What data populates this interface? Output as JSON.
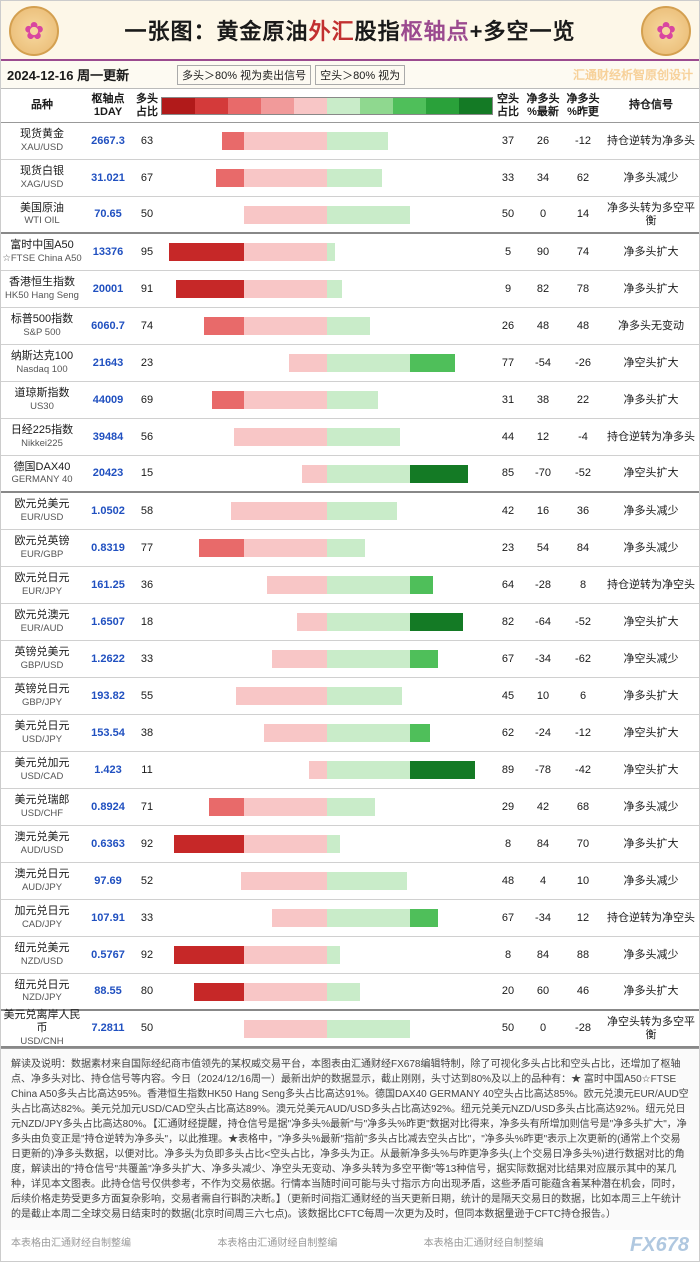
{
  "title": {
    "prefix": "一张图：",
    "p1": "黄金原油",
    "p2": "外汇",
    "p3": "股指",
    "p4": "枢轴点",
    "p5": "+多空一览"
  },
  "date": "2024-12-16  周一更新",
  "legend": {
    "long": "多头＞80%  视为卖出信号",
    "short": "空头＞80%  视为"
  },
  "watermark": "汇通财经析智原创设计",
  "columns": {
    "name": "品种",
    "pivot": "枢轴点\n1DAY",
    "long": "多头\n占比",
    "short": "空头\n占比",
    "netnew": "净多头\n%最新",
    "netprev": "净多头\n%昨更",
    "signal": "持仓信号"
  },
  "scale_colors": [
    "#b11a1a",
    "#d43a3a",
    "#e86a6a",
    "#f19a9a",
    "#f8c6c6",
    "#c9ecc9",
    "#8fd88f",
    "#4fbf5a",
    "#2aa13a",
    "#147a25"
  ],
  "bar_long_colors": {
    "deep": "#c62828",
    "mid": "#e86a6a",
    "light": "#f8c6c6"
  },
  "bar_short_colors": {
    "deep": "#147a25",
    "mid": "#4fbf5a",
    "light": "#c9ecc9"
  },
  "rows": [
    {
      "name": "现货黄金",
      "sub": "XAU/USD",
      "pivot": "2667.3",
      "long": 63,
      "short": 37,
      "netnew": "26",
      "netprev": "-12",
      "signal": "持仓逆转为净多头",
      "sep": false
    },
    {
      "name": "现货白银",
      "sub": "XAG/USD",
      "pivot": "31.021",
      "long": 67,
      "short": 33,
      "netnew": "34",
      "netprev": "62",
      "signal": "净多头减少",
      "sep": false
    },
    {
      "name": "美国原油",
      "sub": "WTI OIL",
      "pivot": "70.65",
      "long": 50,
      "short": 50,
      "netnew": "0",
      "netprev": "14",
      "signal": "净多头转为多空平衡",
      "sep": true
    },
    {
      "name": "富时中国A50",
      "sub": "☆FTSE China A50",
      "pivot": "13376",
      "long": 95,
      "short": 5,
      "netnew": "90",
      "netprev": "74",
      "signal": "净多头扩大",
      "sep": false
    },
    {
      "name": "香港恒生指数",
      "sub": "HK50 Hang Seng",
      "pivot": "20001",
      "long": 91,
      "short": 9,
      "netnew": "82",
      "netprev": "78",
      "signal": "净多头扩大",
      "sep": false
    },
    {
      "name": "标普500指数",
      "sub": "S&P 500",
      "pivot": "6060.7",
      "long": 74,
      "short": 26,
      "netnew": "48",
      "netprev": "48",
      "signal": "净多头无变动",
      "sep": false
    },
    {
      "name": "纳斯达克100",
      "sub": "Nasdaq 100",
      "pivot": "21643",
      "long": 23,
      "short": 77,
      "netnew": "-54",
      "netprev": "-26",
      "signal": "净空头扩大",
      "sep": false
    },
    {
      "name": "道琼斯指数",
      "sub": "US30",
      "pivot": "44009",
      "long": 69,
      "short": 31,
      "netnew": "38",
      "netprev": "22",
      "signal": "净多头扩大",
      "sep": false
    },
    {
      "name": "日经225指数",
      "sub": "Nikkei225",
      "pivot": "39484",
      "long": 56,
      "short": 44,
      "netnew": "12",
      "netprev": "-4",
      "signal": "持仓逆转为净多头",
      "sep": false
    },
    {
      "name": "德国DAX40",
      "sub": "GERMANY 40",
      "pivot": "20423",
      "long": 15,
      "short": 85,
      "netnew": "-70",
      "netprev": "-52",
      "signal": "净空头扩大",
      "sep": true
    },
    {
      "name": "欧元兑美元",
      "sub": "EUR/USD",
      "pivot": "1.0502",
      "long": 58,
      "short": 42,
      "netnew": "16",
      "netprev": "36",
      "signal": "净多头减少",
      "sep": false
    },
    {
      "name": "欧元兑英镑",
      "sub": "EUR/GBP",
      "pivot": "0.8319",
      "long": 77,
      "short": 23,
      "netnew": "54",
      "netprev": "84",
      "signal": "净多头减少",
      "sep": false
    },
    {
      "name": "欧元兑日元",
      "sub": "EUR/JPY",
      "pivot": "161.25",
      "long": 36,
      "short": 64,
      "netnew": "-28",
      "netprev": "8",
      "signal": "持仓逆转为净空头",
      "sep": false
    },
    {
      "name": "欧元兑澳元",
      "sub": "EUR/AUD",
      "pivot": "1.6507",
      "long": 18,
      "short": 82,
      "netnew": "-64",
      "netprev": "-52",
      "signal": "净空头扩大",
      "sep": false
    },
    {
      "name": "英镑兑美元",
      "sub": "GBP/USD",
      "pivot": "1.2622",
      "long": 33,
      "short": 67,
      "netnew": "-34",
      "netprev": "-62",
      "signal": "净空头减少",
      "sep": false
    },
    {
      "name": "英镑兑日元",
      "sub": "GBP/JPY",
      "pivot": "193.82",
      "long": 55,
      "short": 45,
      "netnew": "10",
      "netprev": "6",
      "signal": "净多头扩大",
      "sep": false
    },
    {
      "name": "美元兑日元",
      "sub": "USD/JPY",
      "pivot": "153.54",
      "long": 38,
      "short": 62,
      "netnew": "-24",
      "netprev": "-12",
      "signal": "净空头扩大",
      "sep": false
    },
    {
      "name": "美元兑加元",
      "sub": "USD/CAD",
      "pivot": "1.423",
      "long": 11,
      "short": 89,
      "netnew": "-78",
      "netprev": "-42",
      "signal": "净空头扩大",
      "sep": false
    },
    {
      "name": "美元兑瑞郎",
      "sub": "USD/CHF",
      "pivot": "0.8924",
      "long": 71,
      "short": 29,
      "netnew": "42",
      "netprev": "68",
      "signal": "净多头减少",
      "sep": false
    },
    {
      "name": "澳元兑美元",
      "sub": "AUD/USD",
      "pivot": "0.6363",
      "long": 92,
      "short": 8,
      "netnew": "84",
      "netprev": "70",
      "signal": "净多头扩大",
      "sep": false
    },
    {
      "name": "澳元兑日元",
      "sub": "AUD/JPY",
      "pivot": "97.69",
      "long": 52,
      "short": 48,
      "netnew": "4",
      "netprev": "10",
      "signal": "净多头减少",
      "sep": false
    },
    {
      "name": "加元兑日元",
      "sub": "CAD/JPY",
      "pivot": "107.91",
      "long": 33,
      "short": 67,
      "netnew": "-34",
      "netprev": "12",
      "signal": "持仓逆转为净空头",
      "sep": false
    },
    {
      "name": "纽元兑美元",
      "sub": "NZD/USD",
      "pivot": "0.5767",
      "long": 92,
      "short": 8,
      "netnew": "84",
      "netprev": "88",
      "signal": "净多头减少",
      "sep": false
    },
    {
      "name": "纽元兑日元",
      "sub": "NZD/JPY",
      "pivot": "88.55",
      "long": 80,
      "short": 20,
      "netnew": "60",
      "netprev": "46",
      "signal": "净多头扩大",
      "sep": true
    },
    {
      "name": "美元兑离岸人民币",
      "sub": "USD/CNH",
      "pivot": "7.2811",
      "long": 50,
      "short": 50,
      "netnew": "0",
      "netprev": "-28",
      "signal": "净空头转为多空平衡",
      "sep": true
    }
  ],
  "footer_text": "解读及说明：数据素材来自国际经纪商市值领先的某权威交易平台，本图表由汇通财经FX678编辑特制，除了可视化多头占比和空头占比，还增加了枢轴点、净多头对比、持仓信号等内容。今日（2024/12/16周一）最新出炉的数据显示，截止刚刚，头寸达到80%及以上的品种有：★ 富时中国A50☆FTSE China A50多头占比高达95%。香港恒生指数HK50 Hang Seng多头占比高达91%。德国DAX40 GERMANY 40空头占比高达85%。欧元兑澳元EUR/AUD空头占比高达82%。美元兑加元USD/CAD空头占比高达89%。澳元兑美元AUD/USD多头占比高达92%。纽元兑美元NZD/USD多头占比高达92%。纽元兑日元NZD/JPY多头占比高达80%。【汇通财经提醒，持仓信号是据\"净多头%最新\"与\"净多头%昨更\"数据对比得来，净多头有所增加则信号是\"净多头扩大\"，净多头由负变正是\"持仓逆转为净多头\"，以此推理。★表格中，\"净多头%最新\"指前\"多头占比减去空头占比\"，\"净多头%昨更\"表示上次更新的(通常上个交易日更新的)净多头数据，以便对比。净多头为负即多头占比<空头占比，净多头为正。从最新净多头%与昨更净多头(上个交易日净多头%)进行数据对比的角度，解读出的\"持仓信号\"共覆盖\"净多头扩大、净多头减少、净空头无变动、净多头转为多空平衡\"等13种信号，据实际数据对比结果对应展示其中的某几种，详见本文图表。此持仓信号仅供参考，不作为交易依据。行情本当随时间可能与头寸指示方向出现矛盾，这些矛盾可能蕴含着某种潜在机会，同时，后续价格走势受更多方面复杂影响，交易者需自行斟酌决断。】（更新时间指汇通财经的当天更新日期，统计的是隔天交易日的数据，比如本周三上午统计的是截止本周二全球交易日结束时的数据(北京时间周三六七点)。该数据比CFTC每周一次更为及时，但同本数据量逊于CFTC持仓报告。）",
  "footer_tags": [
    "本表格由汇通财经自制整编",
    "本表格由汇通财经自制整编",
    "本表格由汇通财经自制整编"
  ],
  "brand": "FX678"
}
